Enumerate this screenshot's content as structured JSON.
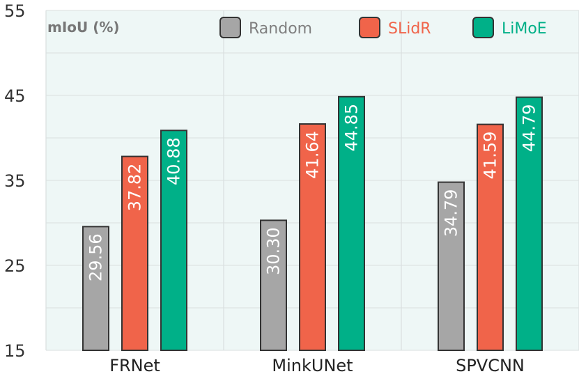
{
  "chart_data": {
    "type": "bar",
    "ylabel": "mIoU (%)",
    "xlabel": "",
    "ylim": [
      15,
      55
    ],
    "yticks": [
      15,
      25,
      35,
      45,
      55
    ],
    "grid": true,
    "legend_position": "top",
    "categories": [
      "FRNet",
      "MinkUNet",
      "SPVCNN"
    ],
    "series": [
      {
        "name": "Random",
        "color": "#a6a6a6",
        "text_color": "#7f7f7f",
        "values": [
          29.56,
          30.3,
          34.79
        ],
        "labels": [
          "29.56",
          "30.30",
          "34.79"
        ]
      },
      {
        "name": "SLidR",
        "color": "#f0644a",
        "text_color": "#f0644a",
        "values": [
          37.82,
          41.64,
          41.59
        ],
        "labels": [
          "37.82",
          "41.64",
          "41.59"
        ]
      },
      {
        "name": "LiMoE",
        "color": "#00b088",
        "text_color": "#00b088",
        "values": [
          40.88,
          44.85,
          44.79
        ],
        "labels": [
          "40.88",
          "44.85",
          "44.79"
        ]
      }
    ]
  },
  "colors": {
    "plot_background": "#eef7f6",
    "grid": "#d9dfdf",
    "bar_border": "#333333"
  }
}
